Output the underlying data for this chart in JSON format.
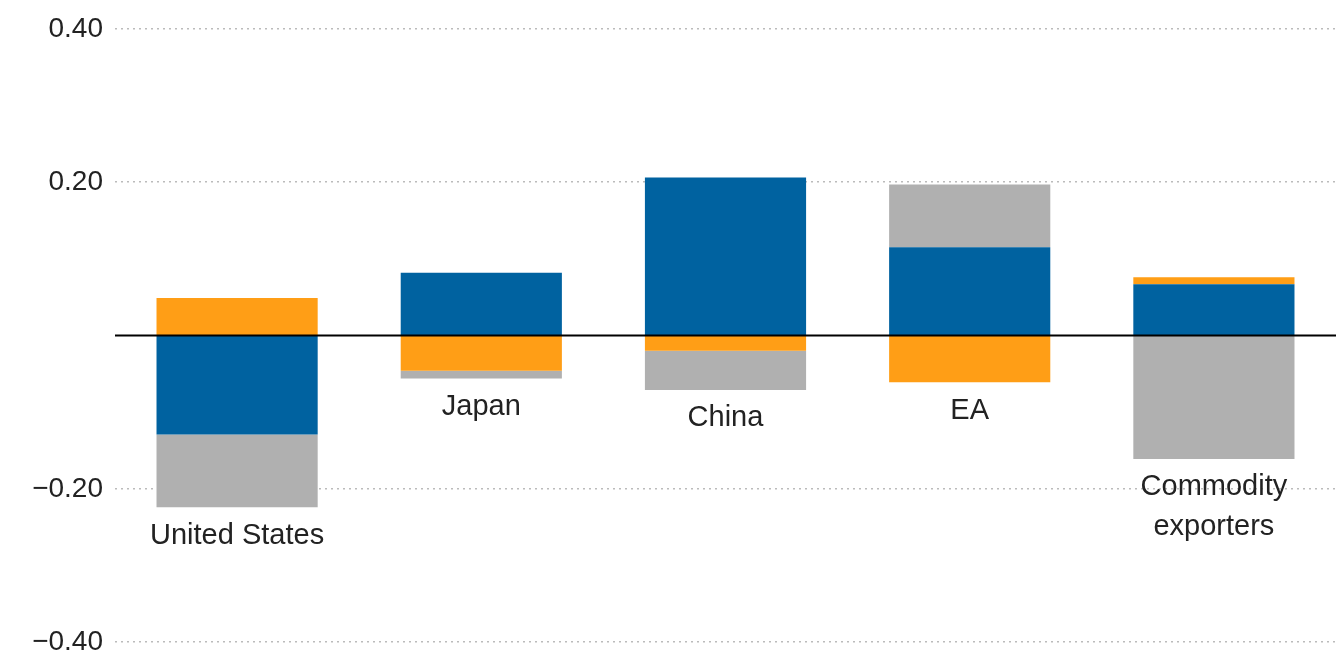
{
  "chart_data": {
    "type": "bar",
    "stacked": true,
    "categories": [
      "United States",
      "Japan",
      "China",
      "EA",
      "Commodity exporters"
    ],
    "series": [
      {
        "color": "#0062a0",
        "values": [
          -0.129,
          0.082,
          0.206,
          0.115,
          0.067
        ]
      },
      {
        "color": "#ff9e16",
        "values": [
          0.049,
          -0.046,
          -0.02,
          -0.061,
          0.009
        ]
      },
      {
        "color": "#b0b0b0",
        "values": [
          -0.095,
          -0.01,
          -0.051,
          0.082,
          -0.161
        ]
      }
    ],
    "ylim": [
      -0.4,
      0.4
    ],
    "yticks": [
      {
        "value": -0.4,
        "label": "−0.40"
      },
      {
        "value": -0.2,
        "label": "−0.20"
      },
      {
        "value": 0.2,
        "label": "0.20"
      },
      {
        "value": 0.4,
        "label": "0.40"
      }
    ],
    "grid": "y",
    "legend": false,
    "ref_lines": [
      {
        "axis": "y",
        "value": 0,
        "color": "#000000"
      }
    ]
  }
}
